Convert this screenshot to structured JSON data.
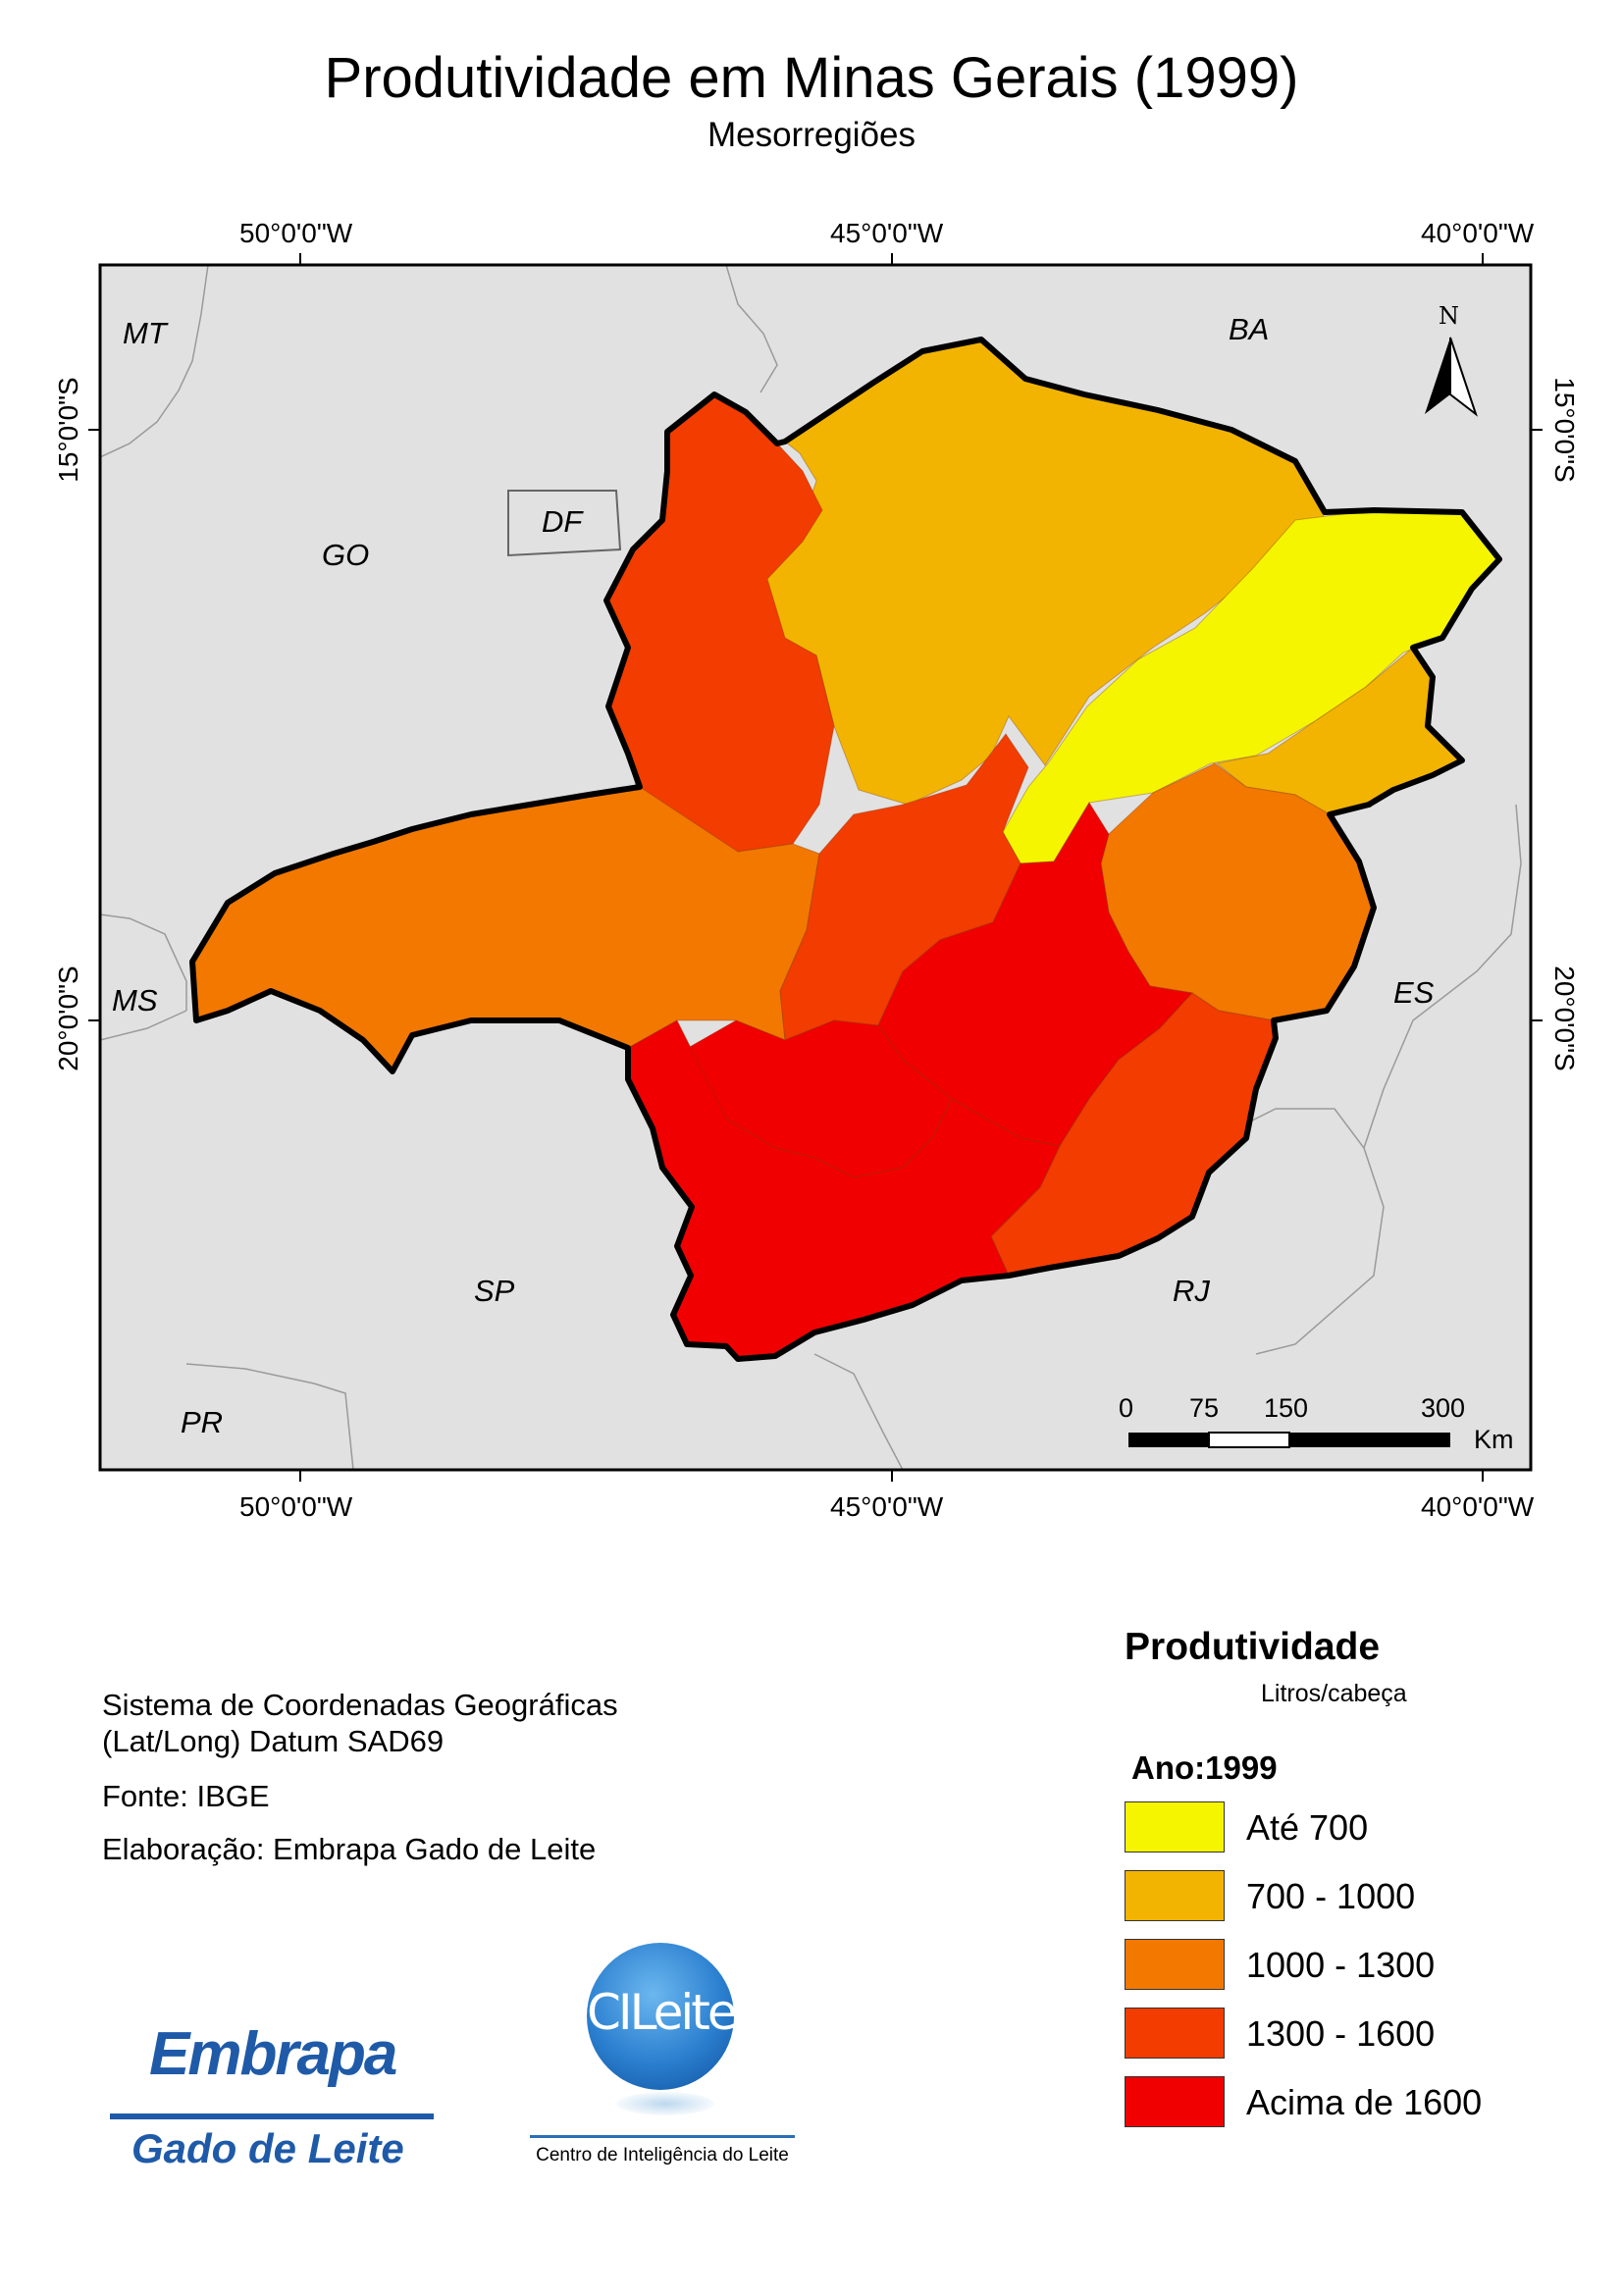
{
  "title": "Produtividade em Minas Gerais (1999)",
  "subtitle": "Mesorregiões",
  "coords": {
    "lon_top": [
      "50°0'0\"W",
      "45°0'0\"W",
      "40°0'0\"W"
    ],
    "lon_bottom": [
      "50°0'0\"W",
      "45°0'0\"W",
      "40°0'0\"W"
    ],
    "lat_left": [
      "15°0'0\"S",
      "20°0'0\"S"
    ],
    "lat_right": [
      "15°0'0\"S",
      "20°0'0\"S"
    ]
  },
  "states": [
    "MT",
    "BA",
    "GO",
    "DF",
    "MS",
    "ES",
    "SP",
    "RJ",
    "PR"
  ],
  "north_arrow": "N",
  "scale": {
    "ticks": [
      "0",
      "75",
      "150",
      "300"
    ],
    "unit": "Km"
  },
  "info": {
    "crs_line1": "Sistema de Coordenadas Geográficas",
    "crs_line2": "(Lat/Long) Datum SAD69",
    "source": "Fonte: IBGE",
    "credit": "Elaboração: Embrapa Gado de Leite"
  },
  "legend": {
    "title": "Produtividade",
    "unit": "Litros/cabeça",
    "year": "Ano:1999",
    "classes": [
      {
        "label": "Até 700",
        "color": "#f5f500"
      },
      {
        "label": "700 - 1000",
        "color": "#f2b400"
      },
      {
        "label": "1000 - 1300",
        "color": "#f27800"
      },
      {
        "label": "1300 - 1600",
        "color": "#f23c00"
      },
      {
        "label": "Acima de 1600",
        "color": "#f00000"
      }
    ]
  },
  "colors": {
    "outside": "#e1e1e1",
    "border": "#000000"
  },
  "logos": {
    "embrapa_word": "Embrapa",
    "embrapa_sub": "Gado de Leite",
    "cileite_word": "CILeite",
    "cileite_sub": "Centro de Inteligência do Leite"
  }
}
